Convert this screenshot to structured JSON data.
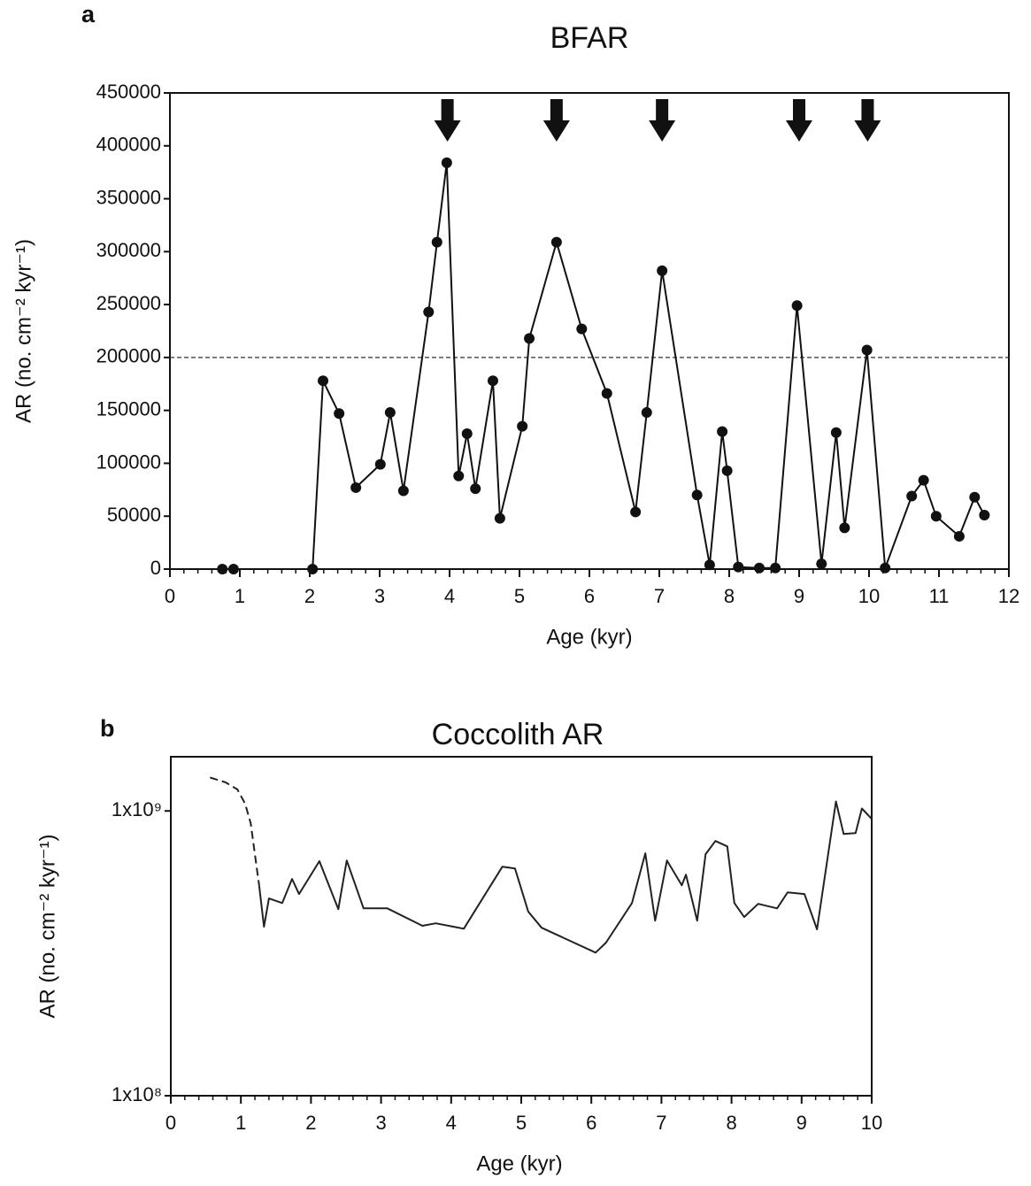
{
  "chart_data": [
    {
      "type": "line",
      "panel": "a",
      "title": "BFAR",
      "x_label": "Age (kyr)",
      "y_label": "AR (no. cm⁻² kyr⁻¹)",
      "xlim": [
        0,
        12
      ],
      "xticks": [
        0,
        1,
        2,
        3,
        4,
        5,
        6,
        7,
        8,
        9,
        10,
        11,
        12
      ],
      "x_minor_step": 0.2,
      "ylim": [
        0,
        450000
      ],
      "yticks": [
        0,
        50000,
        100000,
        150000,
        200000,
        250000,
        300000,
        350000,
        400000,
        450000
      ],
      "log_y": false,
      "grid": false,
      "hline": 200000,
      "arrows": [
        3.97,
        5.53,
        7.04,
        9.0,
        9.98
      ],
      "series": [
        {
          "color": "#111111",
          "markers": true,
          "dashed": false,
          "x": [
            0.75,
            0.91,
            null,
            2.04,
            2.19,
            2.42,
            2.66,
            3.01,
            3.15,
            3.34,
            3.7,
            3.82,
            3.96,
            4.13,
            4.25,
            4.37,
            4.62,
            4.72,
            5.04,
            5.14,
            5.53,
            5.89,
            6.25,
            6.66,
            6.82,
            7.04,
            7.54,
            7.72,
            7.9,
            7.97,
            8.13,
            8.43,
            8.66,
            8.97,
            9.32,
            9.53,
            9.65,
            9.97,
            10.23,
            10.61,
            10.78,
            10.96,
            11.29,
            11.51,
            11.65
          ],
          "values": [
            0,
            0,
            null,
            0,
            178000,
            147000,
            77000,
            99000,
            148000,
            74000,
            243000,
            309000,
            384000,
            88000,
            128000,
            76000,
            178000,
            48000,
            135000,
            218000,
            309000,
            227000,
            166000,
            54000,
            148000,
            282000,
            70000,
            4000,
            130000,
            93000,
            2000,
            1000,
            1000,
            249000,
            5000,
            129000,
            39000,
            207000,
            1000,
            69000,
            84000,
            50000,
            31000,
            68000,
            51000
          ]
        }
      ]
    },
    {
      "type": "line",
      "panel": "b",
      "title": "Coccolith AR",
      "x_label": "Age (kyr)",
      "y_label": "AR (no. cm⁻² kyr⁻¹)",
      "xlim": [
        0,
        10
      ],
      "xticks": [
        0,
        1,
        2,
        3,
        4,
        5,
        6,
        7,
        8,
        9,
        10
      ],
      "x_minor_step": 0.2,
      "ylim": [
        100000000,
        1550000000
      ],
      "yticks": [
        {
          "value": 100000000,
          "label": "1x10⁸"
        },
        {
          "value": 1000000000,
          "label": "1x10⁹"
        }
      ],
      "log_y": true,
      "grid": false,
      "series": [
        {
          "color": "#222222",
          "markers": false,
          "dashed": true,
          "x": [
            0.56,
            0.78,
            0.95,
            1.06,
            1.14,
            1.2,
            1.26
          ],
          "values": [
            1310000000,
            1260000000,
            1190000000,
            1060000000,
            905000000,
            705000000,
            548000000
          ]
        },
        {
          "color": "#222222",
          "markers": false,
          "dashed": false,
          "x": [
            1.26,
            1.33,
            1.4,
            1.59,
            1.73,
            1.83,
            2.12,
            2.39,
            2.51,
            2.75,
            3.09,
            3.59,
            3.78,
            4.18,
            4.73,
            4.91,
            5.1,
            5.29,
            6.06,
            6.21,
            6.58,
            6.77,
            6.91,
            7.08,
            7.29,
            7.35,
            7.51,
            7.63,
            7.77,
            7.94,
            8.04,
            8.18,
            8.38,
            8.65,
            8.8,
            9.04,
            9.22,
            9.49,
            9.6,
            9.77,
            9.86,
            10.0
          ],
          "values": [
            548000000,
            392000000,
            493000000,
            475000000,
            577000000,
            511000000,
            666000000,
            452000000,
            670000000,
            455000000,
            455000000,
            395000000,
            403000000,
            386000000,
            637000000,
            628000000,
            443000000,
            389000000,
            318000000,
            345000000,
            475000000,
            710000000,
            412000000,
            670000000,
            548000000,
            597000000,
            412000000,
            705000000,
            784000000,
            751000000,
            475000000,
            424000000,
            472000000,
            455000000,
            518000000,
            511000000,
            384000000,
            1080000000,
            830000000,
            836000000,
            1020000000,
            938000000
          ]
        }
      ]
    }
  ]
}
